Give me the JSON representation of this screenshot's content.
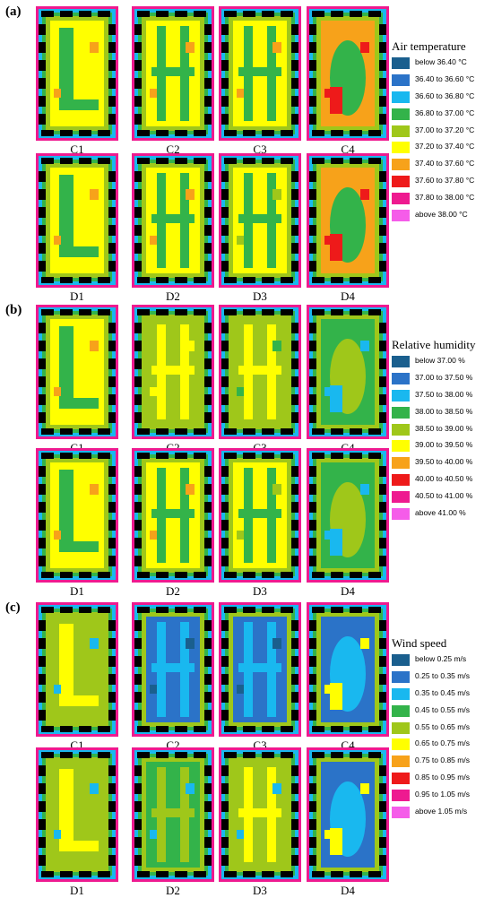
{
  "colors": [
    "#1a5f8e",
    "#2b73c8",
    "#19b8ef",
    "#33b34a",
    "#9fc71a",
    "#ffff00",
    "#f7a21a",
    "#ee1a1a",
    "#ee1a90",
    "#f55ce9"
  ],
  "panels": [
    {
      "letter": "(a)",
      "legend_title": "Air temperature",
      "legend": [
        "below 36.40 °C",
        "36.40 to 36.60 °C",
        "36.60 to 36.80 °C",
        "36.80 to 37.00 °C",
        "37.00 to 37.20 °C",
        "37.20 to 37.40 °C",
        "37.40 to 37.60 °C",
        "37.60 to 37.80 °C",
        "37.80 to 38.00 °C",
        "above 38.00 °C"
      ],
      "maps": [
        {
          "label": "C1",
          "interior": 5,
          "hot": 6
        },
        {
          "label": "C2",
          "interior": 5,
          "hot": 6
        },
        {
          "label": "C3",
          "interior": 5,
          "hot": 6
        },
        {
          "label": "C4",
          "interior": 6,
          "hot": 7
        },
        {
          "label": "D1",
          "interior": 5,
          "hot": 6
        },
        {
          "label": "D2",
          "interior": 5,
          "hot": 6
        },
        {
          "label": "D3",
          "interior": 5,
          "hot": 4
        },
        {
          "label": "D4",
          "interior": 6,
          "hot": 7
        }
      ]
    },
    {
      "letter": "(b)",
      "legend_title": "Relative humidity",
      "legend": [
        "below 37.00 %",
        "37.00 to 37.50 %",
        "37.50 to 38.00 %",
        "38.00 to 38.50 %",
        "38.50 to 39.00 %",
        "39.00 to 39.50 %",
        "39.50 to 40.00 %",
        "40.00 to 40.50 %",
        "40.50 to 41.00 %",
        "above 41.00 %"
      ],
      "maps": [
        {
          "label": "C1",
          "interior": 5,
          "hot": 6
        },
        {
          "label": "C2",
          "interior": 4,
          "hot": 5
        },
        {
          "label": "C3",
          "interior": 4,
          "hot": 3
        },
        {
          "label": "C4",
          "interior": 3,
          "hot": 2
        },
        {
          "label": "D1",
          "interior": 5,
          "hot": 6
        },
        {
          "label": "D2",
          "interior": 5,
          "hot": 6
        },
        {
          "label": "D3",
          "interior": 5,
          "hot": 4
        },
        {
          "label": "D4",
          "interior": 3,
          "hot": 2
        }
      ]
    },
    {
      "letter": "(c)",
      "legend_title": "Wind speed",
      "legend": [
        "below 0.25 m/s",
        "0.25 to 0.35 m/s",
        "0.35 to 0.45 m/s",
        "0.45 to 0.55 m/s",
        "0.55 to 0.65 m/s",
        "0.65 to 0.75 m/s",
        "0.75 to 0.85 m/s",
        "0.85 to 0.95 m/s",
        "0.95 to 1.05 m/s",
        "above 1.05 m/s"
      ],
      "maps": [
        {
          "label": "C1",
          "interior": 4,
          "hot": 2
        },
        {
          "label": "C2",
          "interior": 1,
          "hot": 0
        },
        {
          "label": "C3",
          "interior": 1,
          "hot": 0
        },
        {
          "label": "C4",
          "interior": 1,
          "hot": 5
        },
        {
          "label": "D1",
          "interior": 4,
          "hot": 2
        },
        {
          "label": "D2",
          "interior": 3,
          "hot": 2
        },
        {
          "label": "D3",
          "interior": 4,
          "hot": 2
        },
        {
          "label": "D4",
          "interior": 1,
          "hot": 5
        }
      ]
    }
  ]
}
